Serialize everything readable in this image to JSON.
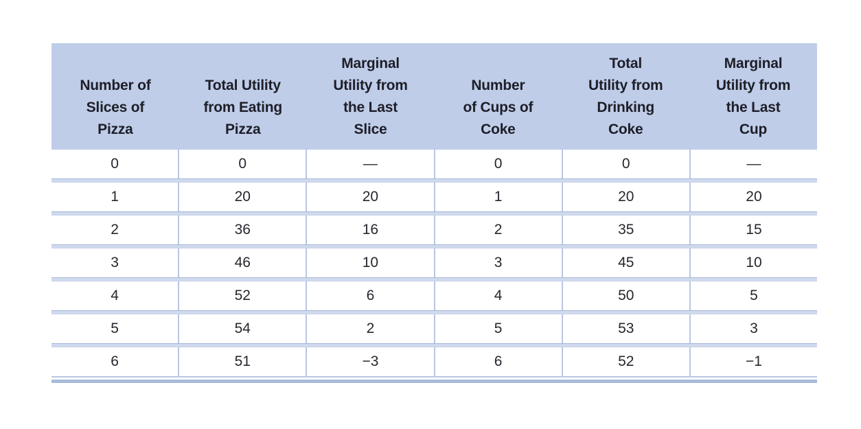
{
  "colors": {
    "header_background": "#bfcde9",
    "grid_line": "#b9c6e2",
    "row_separator": "#d0daee",
    "bottom_rule": "#a9bad9",
    "header_text": "#1e1e27",
    "body_text": "#26262e"
  },
  "table": {
    "columns": [
      "Number of\nSlices of\nPizza",
      "Total Utility\nfrom Eating\nPizza",
      "Marginal\nUtility from\nthe Last\nSlice",
      "Number\nof Cups of\nCoke",
      "Total\nUtility from\nDrinking\nCoke",
      "Marginal\nUtility from\nthe Last\nCup"
    ],
    "rows": [
      [
        "0",
        "0",
        "—",
        "0",
        "0",
        "—"
      ],
      [
        "1",
        "20",
        "20",
        "1",
        "20",
        "20"
      ],
      [
        "2",
        "36",
        "16",
        "2",
        "35",
        "15"
      ],
      [
        "3",
        "46",
        "10",
        "3",
        "45",
        "10"
      ],
      [
        "4",
        "52",
        "6",
        "4",
        "50",
        "5"
      ],
      [
        "5",
        "54",
        "2",
        "5",
        "53",
        "3"
      ],
      [
        "6",
        "51",
        "−3",
        "6",
        "52",
        "−1"
      ]
    ]
  },
  "chart_data": {
    "type": "table",
    "columns": [
      "Number of Slices of Pizza",
      "Total Utility from Eating Pizza",
      "Marginal Utility from the Last Slice",
      "Number of Cups of Coke",
      "Total Utility from Drinking Coke",
      "Marginal Utility from the Last Cup"
    ],
    "rows": [
      [
        0,
        0,
        null,
        0,
        0,
        null
      ],
      [
        1,
        20,
        20,
        1,
        20,
        20
      ],
      [
        2,
        36,
        16,
        2,
        35,
        15
      ],
      [
        3,
        46,
        10,
        3,
        45,
        10
      ],
      [
        4,
        52,
        6,
        4,
        50,
        5
      ],
      [
        5,
        54,
        2,
        5,
        53,
        3
      ],
      [
        6,
        51,
        -3,
        6,
        52,
        -1
      ]
    ]
  }
}
